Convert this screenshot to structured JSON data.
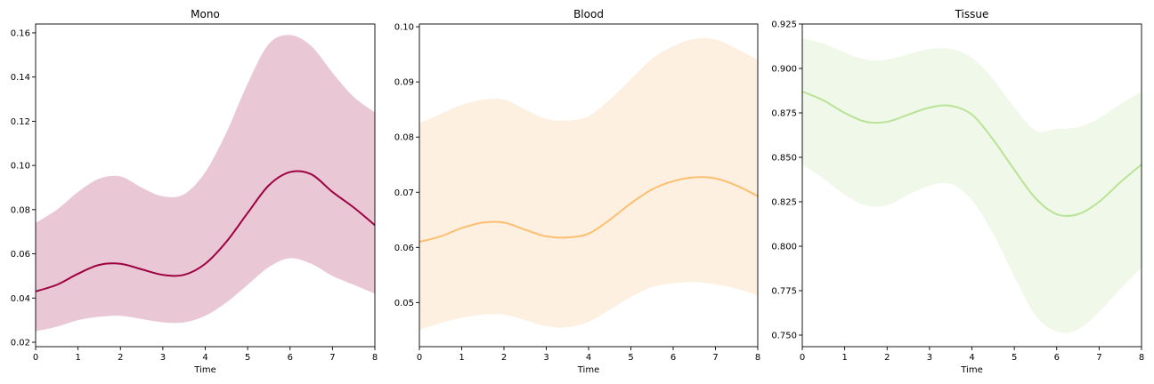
{
  "chart_data": [
    {
      "type": "area",
      "title": "Mono",
      "xlabel": "Time",
      "ylabel": "",
      "xlim": [
        0,
        8
      ],
      "ylim": [
        0.018,
        0.164
      ],
      "x_ticks": [
        0,
        1,
        2,
        3,
        4,
        5,
        6,
        7,
        8
      ],
      "y_ticks": [
        0.02,
        0.04,
        0.06,
        0.08,
        0.1,
        0.12,
        0.14,
        0.16
      ],
      "y_tick_labels": [
        "0.02",
        "0.04",
        "0.06",
        "0.08",
        "0.10",
        "0.12",
        "0.14",
        "0.16"
      ],
      "line_color": "#9e0142",
      "band_color": "#e9c7d5",
      "x": [
        0,
        0.5,
        1,
        1.5,
        2,
        2.5,
        3,
        3.5,
        4,
        4.5,
        5,
        5.5,
        6,
        6.5,
        7,
        7.5,
        8
      ],
      "mean": [
        0.043,
        0.046,
        0.051,
        0.055,
        0.0555,
        0.053,
        0.0505,
        0.0505,
        0.0555,
        0.0655,
        0.0785,
        0.091,
        0.097,
        0.096,
        0.088,
        0.081,
        0.073
      ],
      "upper": [
        0.074,
        0.08,
        0.088,
        0.094,
        0.095,
        0.09,
        0.086,
        0.087,
        0.097,
        0.115,
        0.137,
        0.155,
        0.159,
        0.154,
        0.142,
        0.131,
        0.124
      ],
      "lower": [
        0.025,
        0.027,
        0.03,
        0.0315,
        0.032,
        0.0305,
        0.029,
        0.029,
        0.032,
        0.038,
        0.046,
        0.054,
        0.058,
        0.0555,
        0.05,
        0.046,
        0.042
      ]
    },
    {
      "type": "area",
      "title": "Blood",
      "xlabel": "Time",
      "ylabel": "",
      "xlim": [
        0,
        8
      ],
      "ylim": [
        0.042,
        0.1005
      ],
      "x_ticks": [
        0,
        1,
        2,
        3,
        4,
        5,
        6,
        7,
        8
      ],
      "y_ticks": [
        0.05,
        0.06,
        0.07,
        0.08,
        0.09,
        0.1
      ],
      "y_tick_labels": [
        "0.05",
        "0.06",
        "0.07",
        "0.08",
        "0.09",
        "0.10"
      ],
      "line_color": "#fdbf6f",
      "band_color": "#fef0e0",
      "x": [
        0,
        0.5,
        1,
        1.5,
        2,
        2.5,
        3,
        3.5,
        4,
        4.5,
        5,
        5.5,
        6,
        6.5,
        7,
        7.5,
        8
      ],
      "mean": [
        0.061,
        0.062,
        0.0635,
        0.0645,
        0.0645,
        0.0632,
        0.062,
        0.0618,
        0.0625,
        0.065,
        0.068,
        0.0705,
        0.072,
        0.0727,
        0.0725,
        0.0712,
        0.0693
      ],
      "upper": [
        0.0825,
        0.0842,
        0.0858,
        0.0868,
        0.0868,
        0.085,
        0.0833,
        0.083,
        0.0838,
        0.0868,
        0.0905,
        0.0942,
        0.0965,
        0.0978,
        0.0977,
        0.096,
        0.094
      ],
      "lower": [
        0.045,
        0.0463,
        0.0472,
        0.0478,
        0.0478,
        0.0468,
        0.0457,
        0.0455,
        0.0465,
        0.0487,
        0.051,
        0.0528,
        0.0535,
        0.0537,
        0.0533,
        0.0525,
        0.0513
      ]
    },
    {
      "type": "area",
      "title": "Tissue",
      "xlabel": "Time",
      "ylabel": "",
      "xlim": [
        0,
        8
      ],
      "ylim": [
        0.7435,
        0.925
      ],
      "x_ticks": [
        0,
        1,
        2,
        3,
        4,
        5,
        6,
        7,
        8
      ],
      "y_ticks": [
        0.75,
        0.775,
        0.8,
        0.825,
        0.85,
        0.875,
        0.9,
        0.925
      ],
      "y_tick_labels": [
        "0.750",
        "0.775",
        "0.800",
        "0.825",
        "0.850",
        "0.875",
        "0.900",
        "0.925"
      ],
      "line_color": "#b9e395",
      "band_color": "#f0f8ea",
      "x": [
        0,
        0.5,
        1,
        1.5,
        2,
        2.5,
        3,
        3.5,
        4,
        4.5,
        5,
        5.5,
        6,
        6.5,
        7,
        7.5,
        8
      ],
      "mean": [
        0.887,
        0.882,
        0.875,
        0.87,
        0.87,
        0.874,
        0.878,
        0.879,
        0.874,
        0.86,
        0.843,
        0.827,
        0.818,
        0.818,
        0.825,
        0.836,
        0.846
      ],
      "upper": [
        0.917,
        0.914,
        0.909,
        0.905,
        0.905,
        0.908,
        0.911,
        0.911,
        0.906,
        0.894,
        0.878,
        0.865,
        0.866,
        0.867,
        0.872,
        0.88,
        0.887
      ],
      "lower": [
        0.846,
        0.838,
        0.829,
        0.823,
        0.823,
        0.829,
        0.834,
        0.835,
        0.826,
        0.807,
        0.783,
        0.761,
        0.752,
        0.753,
        0.763,
        0.776,
        0.788
      ]
    }
  ]
}
